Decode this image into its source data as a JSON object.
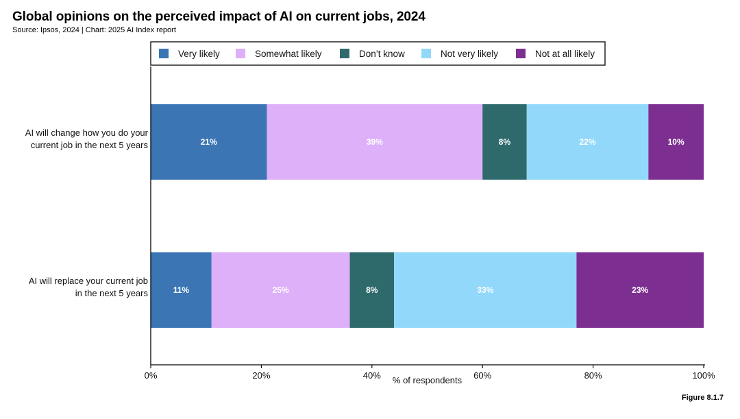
{
  "title": "Global opinions on the perceived impact of AI on current jobs, 2024",
  "subtitle": "Source: Ipsos, 2024 | Chart: 2025 AI Index report",
  "figure_label": "Figure 8.1.7",
  "chart_data": {
    "type": "bar",
    "orientation": "horizontal",
    "stacked": true,
    "title": "Global opinions on the perceived impact of AI on current jobs, 2024",
    "xlabel": "% of respondents",
    "ylabel": "",
    "xlim": [
      0,
      100
    ],
    "x_ticks": [
      "0%",
      "20%",
      "40%",
      "60%",
      "80%",
      "100%"
    ],
    "x_tick_values": [
      0,
      20,
      40,
      60,
      80,
      100
    ],
    "grid": false,
    "legend_position": "top",
    "categories": [
      [
        "AI will change how you do your",
        "current job in the next 5 years"
      ],
      [
        "AI will replace your current job",
        "in the next 5 years"
      ]
    ],
    "series": [
      {
        "name": "Very likely",
        "color": "#3B75B4",
        "values": [
          21,
          11
        ],
        "labels": [
          "21%",
          "11%"
        ]
      },
      {
        "name": "Somewhat likely",
        "color": "#DEB0F9",
        "values": [
          39,
          25
        ],
        "labels": [
          "39%",
          "25%"
        ]
      },
      {
        "name": "Don’t know",
        "color": "#2E6A6B",
        "values": [
          8,
          8
        ],
        "labels": [
          "8%",
          "8%"
        ]
      },
      {
        "name": "Not very likely",
        "color": "#92D8FB",
        "values": [
          22,
          33
        ],
        "labels": [
          "22%",
          "33%"
        ]
      },
      {
        "name": "Not at all likely",
        "color": "#7D2F91",
        "values": [
          10,
          23
        ],
        "labels": [
          "10%",
          "23%"
        ]
      }
    ]
  }
}
